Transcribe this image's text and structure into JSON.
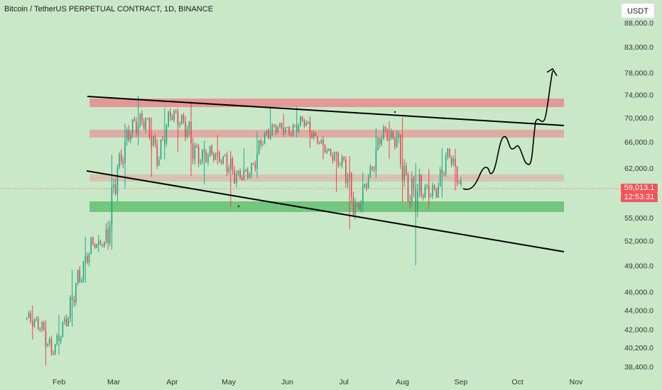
{
  "header": {
    "title": "Bitcoin / TetherUS PERPETUAL CONTRACT, 1D, BINANCE",
    "currency_button": "USDT"
  },
  "price_label": {
    "price": "59,013.1",
    "countdown": "12:53:31"
  },
  "colors": {
    "background": "#c9e8c8",
    "up_candle": "#1fa886",
    "down_candle": "#f0424d",
    "resistance_zone": "#e58f8f",
    "support_zone": "#6fc47a",
    "trendline": "#000000",
    "price_line": "#f0424d"
  },
  "chart_data": {
    "type": "candlestick",
    "title": "Bitcoin / TetherUS PERPETUAL CONTRACT, 1D, BINANCE",
    "x_tick_labels": [
      "Feb",
      "Mar",
      "Apr",
      "May",
      "Jun",
      "Jul",
      "Aug",
      "Sep",
      "Oct",
      "Nov"
    ],
    "y_tick_labels": [
      "88,000.0",
      "83,000.0",
      "78,000.0",
      "74,000.0",
      "70,000.0",
      "66,000.0",
      "62,000.0",
      "55,000.0",
      "52,000.0",
      "49,000.0",
      "46,000.0",
      "44,000.0",
      "42,000.0",
      "40,200.0",
      "38,400.0"
    ],
    "y_scale": "log",
    "last_price": 59013.1,
    "candles_weekly_approx": [
      {
        "week": "Jan 15",
        "open": 43200,
        "high": 44500,
        "low": 41000,
        "close": 42500
      },
      {
        "week": "Jan 22",
        "open": 42500,
        "high": 42900,
        "low": 38500,
        "close": 39800
      },
      {
        "week": "Jan 29",
        "open": 39800,
        "high": 43500,
        "low": 39500,
        "close": 42700
      },
      {
        "week": "Feb 05",
        "open": 42700,
        "high": 48500,
        "low": 42300,
        "close": 47500
      },
      {
        "week": "Feb 12",
        "open": 47500,
        "high": 52500,
        "low": 47000,
        "close": 51500
      },
      {
        "week": "Feb 19",
        "open": 51500,
        "high": 52800,
        "low": 50600,
        "close": 51700
      },
      {
        "week": "Feb 26",
        "open": 51700,
        "high": 64000,
        "low": 50900,
        "close": 62300
      },
      {
        "week": "Mar 04",
        "open": 62300,
        "high": 69000,
        "low": 59000,
        "close": 68500
      },
      {
        "week": "Mar 11",
        "open": 68500,
        "high": 73800,
        "low": 65500,
        "close": 69500
      },
      {
        "week": "Mar 18",
        "open": 69500,
        "high": 70000,
        "low": 60700,
        "close": 63800
      },
      {
        "week": "Mar 25",
        "open": 63800,
        "high": 71600,
        "low": 63300,
        "close": 70700
      },
      {
        "week": "Apr 01",
        "open": 70700,
        "high": 71500,
        "low": 64500,
        "close": 69000
      },
      {
        "week": "Apr 08",
        "open": 69000,
        "high": 72800,
        "low": 60800,
        "close": 63500
      },
      {
        "week": "Apr 15",
        "open": 63500,
        "high": 66200,
        "low": 59600,
        "close": 64200
      },
      {
        "week": "Apr 22",
        "open": 64200,
        "high": 67100,
        "low": 62500,
        "close": 63100
      },
      {
        "week": "Apr 29",
        "open": 63100,
        "high": 64600,
        "low": 56500,
        "close": 60800
      },
      {
        "week": "May 06",
        "open": 60800,
        "high": 65000,
        "low": 60100,
        "close": 61400
      },
      {
        "week": "May 13",
        "open": 61400,
        "high": 67700,
        "low": 60500,
        "close": 66800
      },
      {
        "week": "May 20",
        "open": 66800,
        "high": 71900,
        "low": 66300,
        "close": 68500
      },
      {
        "week": "May 27",
        "open": 68500,
        "high": 70600,
        "low": 66800,
        "close": 67700
      },
      {
        "week": "Jun 03",
        "open": 67700,
        "high": 71900,
        "low": 66700,
        "close": 69500
      },
      {
        "week": "Jun 10",
        "open": 69500,
        "high": 70200,
        "low": 65100,
        "close": 66400
      },
      {
        "week": "Jun 17",
        "open": 66400,
        "high": 66900,
        "low": 63300,
        "close": 64300
      },
      {
        "week": "Jun 24",
        "open": 64300,
        "high": 64500,
        "low": 58500,
        "close": 62700
      },
      {
        "week": "Jul 01",
        "open": 62700,
        "high": 63800,
        "low": 53500,
        "close": 56000
      },
      {
        "week": "Jul 08",
        "open": 56000,
        "high": 61300,
        "low": 55700,
        "close": 60800
      },
      {
        "week": "Jul 15",
        "open": 60800,
        "high": 68300,
        "low": 60500,
        "close": 67600
      },
      {
        "week": "Jul 22",
        "open": 67600,
        "high": 69400,
        "low": 63400,
        "close": 66300
      },
      {
        "week": "Jul 29",
        "open": 66300,
        "high": 70000,
        "low": 57100,
        "close": 58100
      },
      {
        "week": "Aug 05",
        "open": 58100,
        "high": 62700,
        "low": 49000,
        "close": 58700
      },
      {
        "week": "Aug 12",
        "open": 58700,
        "high": 61800,
        "low": 56100,
        "close": 58500
      },
      {
        "week": "Aug 19",
        "open": 58500,
        "high": 65000,
        "low": 57700,
        "close": 64200
      },
      {
        "week": "Aug 26",
        "open": 64200,
        "high": 64900,
        "low": 58700,
        "close": 59100
      }
    ]
  }
}
